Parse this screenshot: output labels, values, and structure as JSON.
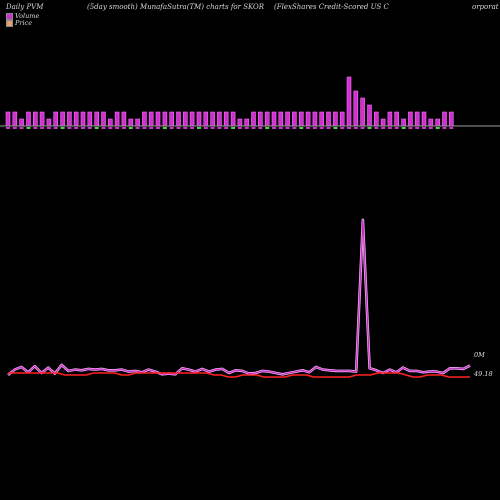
{
  "header": {
    "left": "Daily PVM",
    "center": "(5day smooth) MunafaSutra(TM) charts for SKOR",
    "right": "(FlexShares Credit-Scored US C",
    "right_cont": "orporat"
  },
  "legend": {
    "volume": "Volume",
    "price": "Price",
    "volume_color": "#cc33cc",
    "price_color": "#e8a070"
  },
  "right_labels": {
    "volume": "0M",
    "price": "49.18"
  },
  "chart_data": {
    "type": "bar",
    "title": "(5day smooth) MunafaSutra(TM) charts for SKOR",
    "series": [
      {
        "name": "Volume",
        "values": [
          2,
          2,
          1,
          2,
          2,
          2,
          1,
          2,
          2,
          2,
          2,
          2,
          2,
          2,
          2,
          1,
          2,
          2,
          1,
          1,
          2,
          2,
          2,
          2,
          2,
          2,
          2,
          2,
          2,
          2,
          2,
          2,
          2,
          2,
          1,
          1,
          2,
          2,
          2,
          2,
          2,
          2,
          2,
          2,
          2,
          2,
          2,
          2,
          2,
          2,
          7,
          5,
          4,
          3,
          2,
          1,
          2,
          2,
          1,
          2,
          2,
          2,
          1,
          1,
          2,
          2
        ]
      },
      {
        "name": "Price",
        "values": [
          49.2,
          49.2,
          49.2,
          49.2,
          49.2,
          49.2,
          49.2,
          49.2,
          49.19,
          49.19,
          49.19,
          49.19,
          49.2,
          49.2,
          49.2,
          49.2,
          49.19,
          49.19,
          49.2,
          49.2,
          49.2,
          49.2,
          49.2,
          49.2,
          49.2,
          49.2,
          49.2,
          49.2,
          49.2,
          49.19,
          49.19,
          49.18,
          49.18,
          49.19,
          49.19,
          49.19,
          49.18,
          49.18,
          49.18,
          49.18,
          49.19,
          49.19,
          49.19,
          49.18,
          49.18,
          49.18,
          49.18,
          49.18,
          49.18,
          49.19,
          49.19,
          49.19,
          49.2,
          49.2,
          49.2,
          49.2,
          49.19,
          49.18,
          49.18,
          49.19,
          49.19,
          49.19,
          49.18,
          49.18,
          49.18,
          49.18
        ]
      }
    ],
    "volume_line": [
      0,
      8,
      12,
      4,
      13,
      3,
      11,
      2,
      15,
      6,
      8,
      7,
      9,
      8,
      9,
      7,
      7,
      8,
      5,
      6,
      4,
      8,
      5,
      1,
      2,
      1,
      10,
      8,
      5,
      9,
      5,
      8,
      9,
      3,
      7,
      6,
      2,
      3,
      6,
      5,
      3,
      1,
      3,
      5,
      7,
      4,
      12,
      8,
      7,
      6,
      6,
      6,
      5,
      230,
      10,
      7,
      3,
      8,
      4,
      11,
      6,
      6,
      4,
      5,
      5,
      3,
      10,
      10,
      9,
      14
    ]
  }
}
